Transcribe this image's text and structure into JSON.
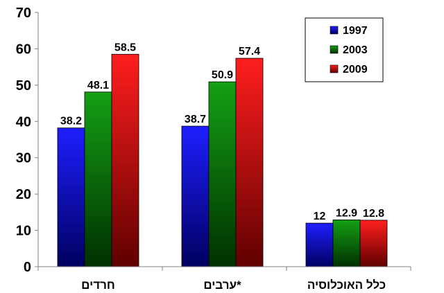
{
  "chart_data": {
    "type": "bar",
    "categories": [
      "חרדים",
      "ערבים*",
      "כלל האוכלוסיה"
    ],
    "series": [
      {
        "name": "1997",
        "values": [
          38.2,
          38.7,
          12
        ],
        "labels": [
          "38.2",
          "38.7",
          "12"
        ]
      },
      {
        "name": "2003",
        "values": [
          48.1,
          50.9,
          12.9
        ],
        "labels": [
          "48.1",
          "50.9",
          "12.9"
        ]
      },
      {
        "name": "2009",
        "values": [
          58.5,
          57.4,
          12.8
        ],
        "labels": [
          "58.5",
          "57.4",
          "12.8"
        ]
      }
    ],
    "ylim": [
      0,
      70
    ],
    "yticks": [
      "0",
      "10",
      "20",
      "30",
      "40",
      "50",
      "60",
      "70"
    ],
    "grid": false,
    "legend_position": "top-right",
    "colors": {
      "1997": {
        "top": "#1e1eff",
        "bottom": "#000060"
      },
      "2003": {
        "top": "#14a014",
        "bottom": "#003000"
      },
      "2009": {
        "top": "#ff1e1e",
        "bottom": "#600000"
      }
    }
  }
}
